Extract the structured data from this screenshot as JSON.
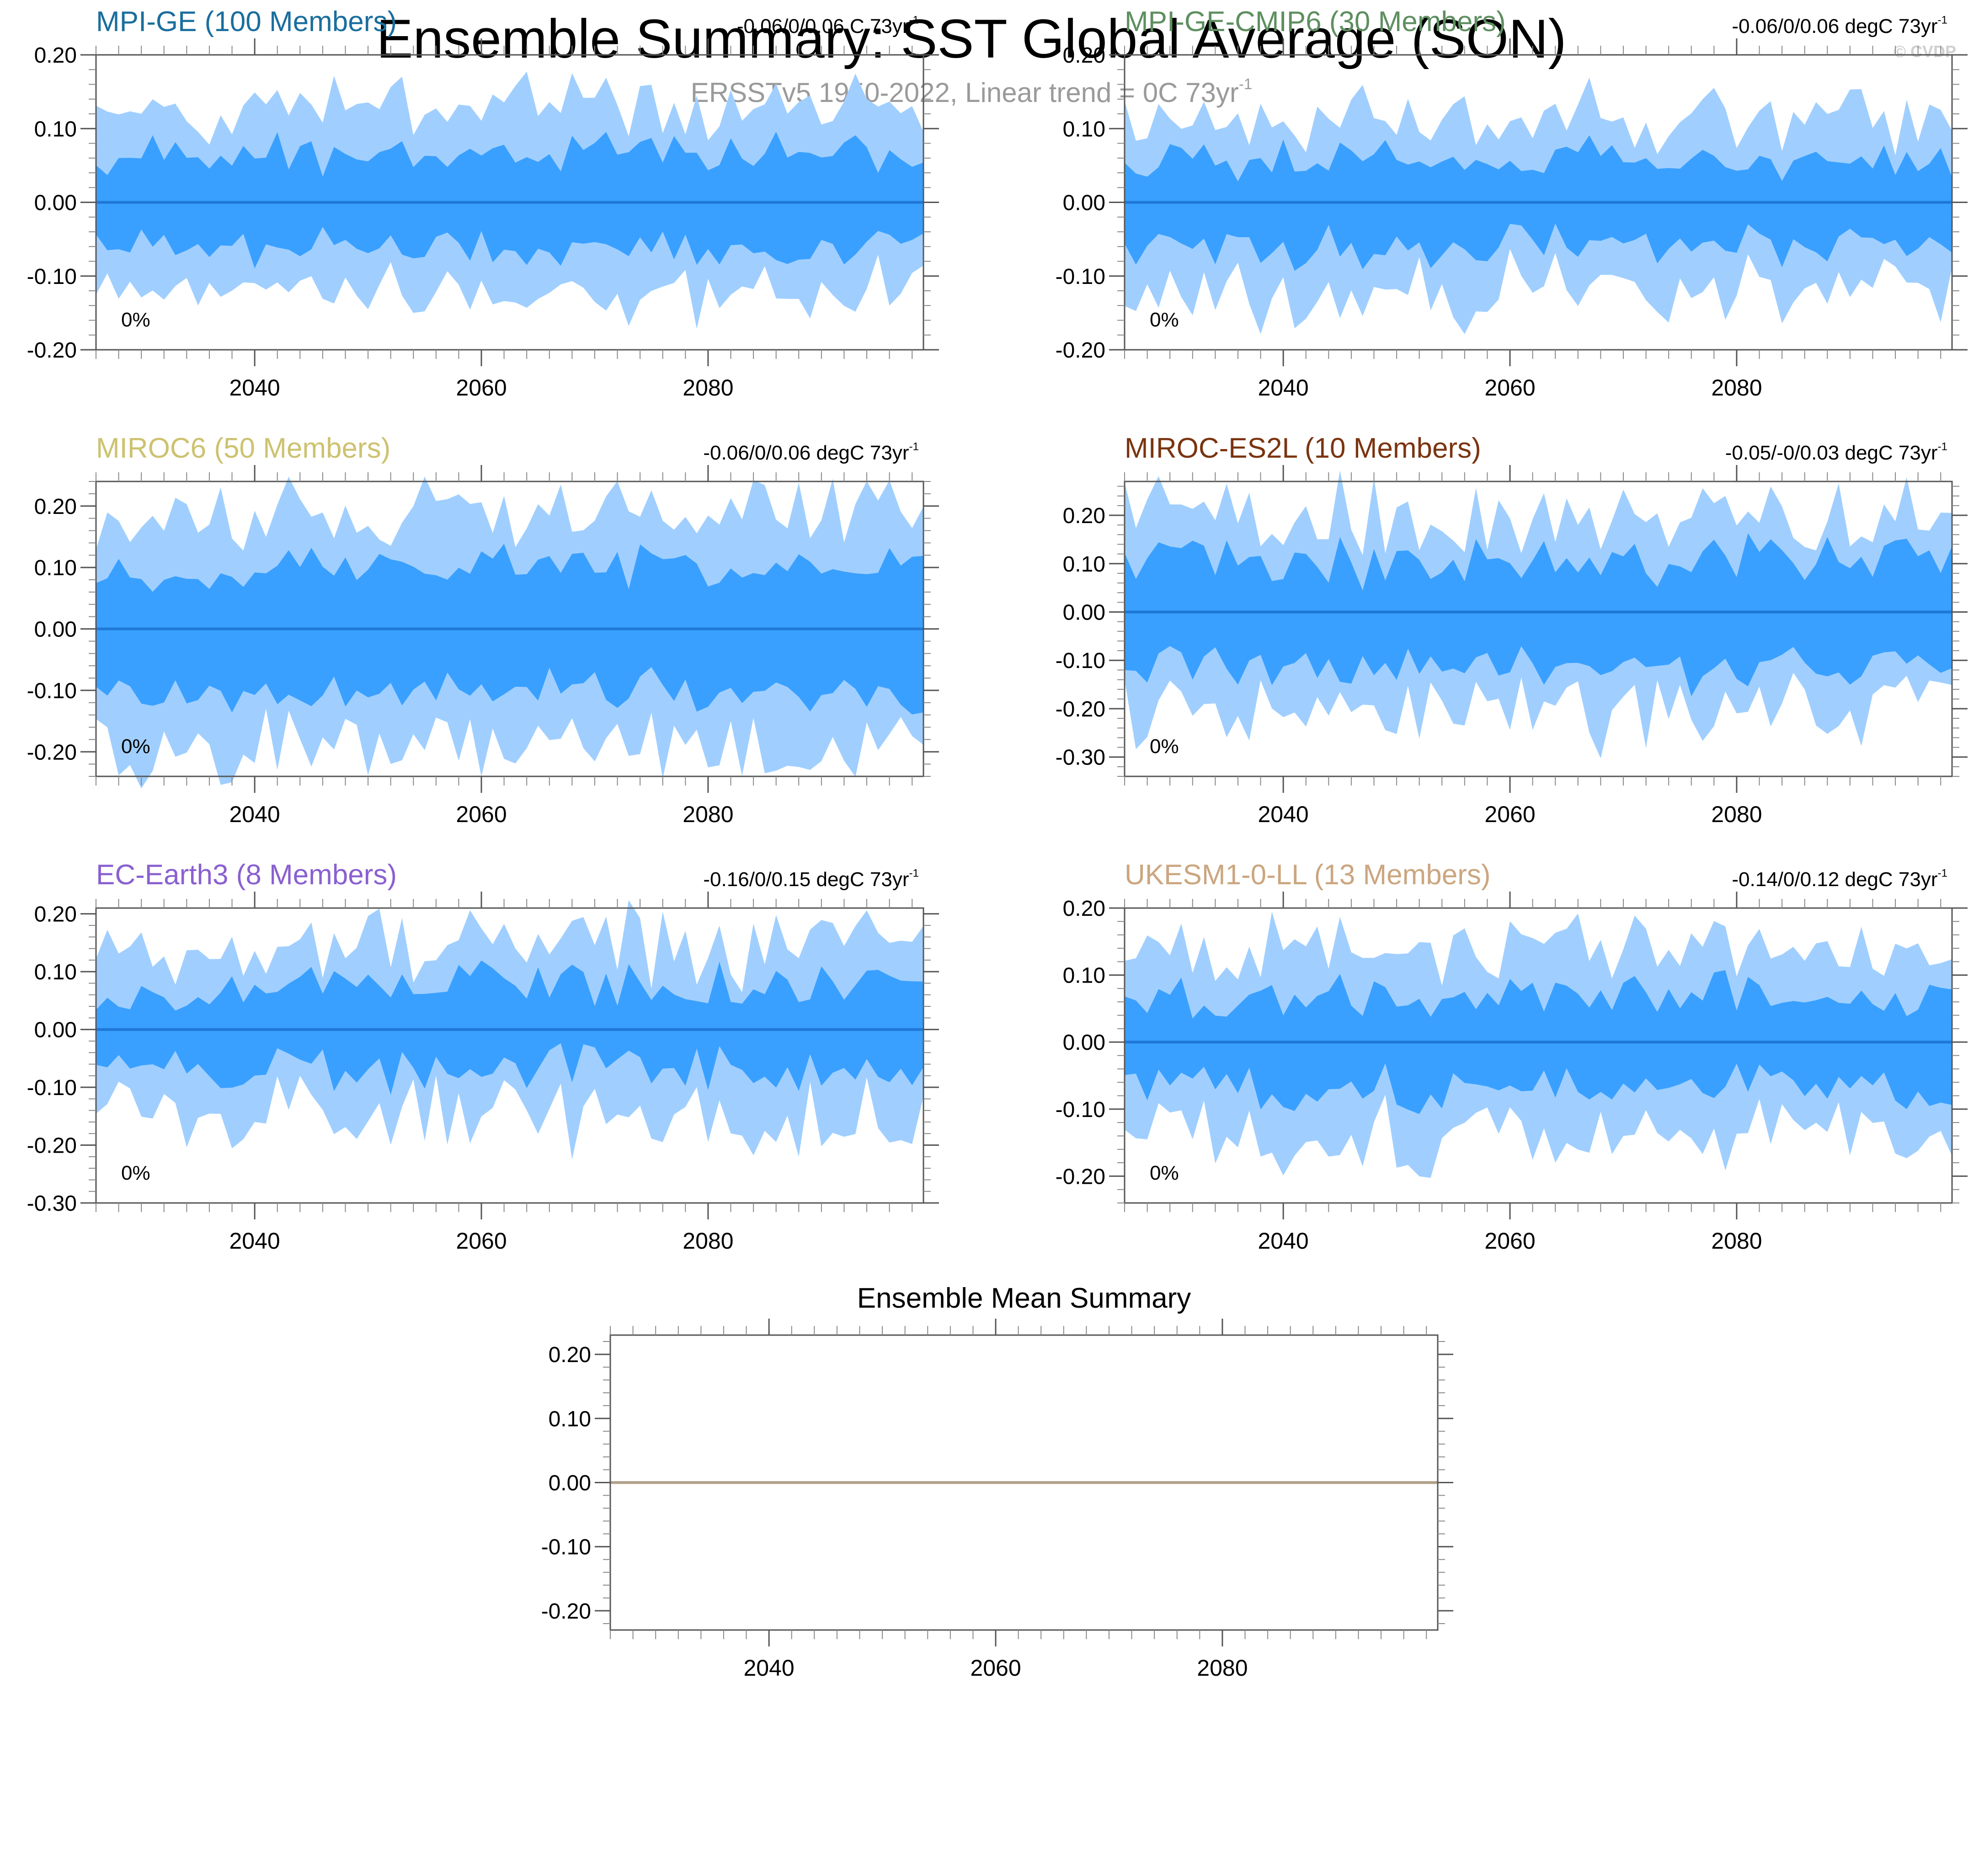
{
  "header": {
    "title": "Ensemble Summary: SST Global Average (SON)",
    "subtitle": "ERSSTv5 1950-2022, Linear trend = 0C 73yr",
    "subtitle_sup": "-1",
    "watermark": "© CVDP"
  },
  "colors": {
    "band_outer": "#a0cfff",
    "band_inner": "#3aa0ff",
    "mean_line": "#1f78d6",
    "mean_summary_line": "#b09e88"
  },
  "chart_data": [
    {
      "type": "area",
      "name": "MPI-GE (100 Members)",
      "title": "MPI-GE (100 Members)",
      "title_color": "#1a6e9e",
      "trend_label": "-0.06/0/0.06 C 73yr",
      "trend_sup": "-1",
      "percent_label": "0%",
      "xlim": [
        2026,
        2099
      ],
      "ylim": [
        -0.2,
        0.2
      ],
      "yticks": [
        "0.20",
        "0.10",
        "0.00",
        "-0.10",
        "-0.20"
      ],
      "ytick_values": [
        0.2,
        0.1,
        0.0,
        -0.1,
        -0.2
      ],
      "xticks": [
        "2040",
        "2060",
        "2080"
      ],
      "xtick_values": [
        2040,
        2060,
        2080
      ],
      "bands": {
        "amp_outer": 0.125,
        "amp_inner": 0.065,
        "noise": 0.025,
        "seed": 11
      },
      "mean": 0.0
    },
    {
      "type": "area",
      "name": "MPI-GE-CMIP6 (30 Members)",
      "title": "MPI-GE-CMIP6 (30 Members)",
      "title_color": "#5e8f60",
      "trend_label": "-0.06/0/0.06 degC 73yr",
      "trend_sup": "-1",
      "percent_label": "0%",
      "xlim": [
        2026,
        2099
      ],
      "ylim": [
        -0.2,
        0.2
      ],
      "yticks": [
        "0.20",
        "0.10",
        "0.00",
        "-0.10",
        "-0.20"
      ],
      "ytick_values": [
        0.2,
        0.1,
        0.0,
        -0.1,
        -0.2
      ],
      "xticks": [
        "2040",
        "2060",
        "2080"
      ],
      "xtick_values": [
        2040,
        2060,
        2080
      ],
      "bands": {
        "amp_outer": 0.12,
        "amp_inner": 0.06,
        "noise": 0.035,
        "seed": 23
      },
      "mean": 0.0
    },
    {
      "type": "area",
      "name": "MIROC6 (50 Members)",
      "title": "MIROC6 (50 Members)",
      "title_color": "#cdc270",
      "trend_label": "-0.06/0/0.06 degC 73yr",
      "trend_sup": "-1",
      "percent_label": "0%",
      "xlim": [
        2026,
        2099
      ],
      "ylim": [
        -0.24,
        0.24
      ],
      "yticks": [
        "0.20",
        "0.10",
        "0.00",
        "-0.10",
        "-0.20"
      ],
      "ytick_values": [
        0.2,
        0.1,
        0.0,
        -0.1,
        -0.2
      ],
      "xticks": [
        "2040",
        "2060",
        "2080"
      ],
      "xtick_values": [
        2040,
        2060,
        2080
      ],
      "bands": {
        "amp_outer": 0.19,
        "amp_inner": 0.1,
        "noise": 0.025,
        "seed": 37
      },
      "mean": 0.0
    },
    {
      "type": "area",
      "name": "MIROC-ES2L (10 Members)",
      "title": "MIROC-ES2L (10 Members)",
      "title_color": "#7a3410",
      "trend_label": "-0.05/-0/0.03 degC 73yr",
      "trend_sup": "-1",
      "percent_label": "0%",
      "xlim": [
        2026,
        2099
      ],
      "ylim": [
        -0.34,
        0.27
      ],
      "yticks": [
        "0.20",
        "0.10",
        "0.00",
        "-0.10",
        "-0.20",
        "-0.30"
      ],
      "ytick_values": [
        0.2,
        0.1,
        0.0,
        -0.1,
        -0.2,
        -0.3
      ],
      "xticks": [
        "2040",
        "2060",
        "2080"
      ],
      "xtick_values": [
        2040,
        2060,
        2080
      ],
      "bands": {
        "amp_outer": 0.2,
        "amp_inner": 0.11,
        "noise": 0.06,
        "seed": 41
      },
      "mean": 0.0
    },
    {
      "type": "area",
      "name": "EC-Earth3 (8 Members)",
      "title": "EC-Earth3 (8 Members)",
      "title_color": "#8a60d0",
      "trend_label": "-0.16/0/0.15 degC 73yr",
      "trend_sup": "-1",
      "percent_label": "0%",
      "xlim": [
        2026,
        2099
      ],
      "ylim": [
        -0.3,
        0.21
      ],
      "yticks": [
        "0.20",
        "0.10",
        "0.00",
        "-0.10",
        "-0.20",
        "-0.30"
      ],
      "ytick_values": [
        0.2,
        0.1,
        0.0,
        -0.1,
        -0.2,
        -0.3
      ],
      "xticks": [
        "2040",
        "2060",
        "2080"
      ],
      "xtick_values": [
        2040,
        2060,
        2080
      ],
      "bands": {
        "amp_outer": 0.15,
        "amp_inner": 0.07,
        "noise": 0.055,
        "seed": 53
      },
      "mean": 0.0
    },
    {
      "type": "area",
      "name": "UKESM1-0-LL (13 Members)",
      "title": "UKESM1-0-LL (13 Members)",
      "title_color": "#cba680",
      "trend_label": "-0.14/0/0.12 degC 73yr",
      "trend_sup": "-1",
      "percent_label": "0%",
      "xlim": [
        2026,
        2099
      ],
      "ylim": [
        -0.24,
        0.2
      ],
      "yticks": [
        "0.20",
        "0.10",
        "0.00",
        "-0.10",
        "-0.20"
      ],
      "ytick_values": [
        0.2,
        0.1,
        0.0,
        -0.1,
        -0.2
      ],
      "xticks": [
        "2040",
        "2060",
        "2080"
      ],
      "xtick_values": [
        2040,
        2060,
        2080
      ],
      "bands": {
        "amp_outer": 0.14,
        "amp_inner": 0.07,
        "noise": 0.035,
        "seed": 67
      },
      "mean": 0.0
    },
    {
      "type": "line",
      "name": "Ensemble Mean Summary",
      "title": "Ensemble Mean Summary",
      "xlim": [
        2026,
        2099
      ],
      "ylim": [
        -0.23,
        0.23
      ],
      "yticks": [
        "0.20",
        "0.10",
        "0.00",
        "-0.10",
        "-0.20"
      ],
      "ytick_values": [
        0.2,
        0.1,
        0.0,
        -0.1,
        -0.2
      ],
      "xticks": [
        "2040",
        "2060",
        "2080"
      ],
      "xtick_values": [
        2040,
        2060,
        2080
      ],
      "series": [
        {
          "name": "ensemble mean",
          "x": [
            2026,
            2099
          ],
          "values": [
            0.0,
            0.0
          ]
        }
      ]
    }
  ]
}
